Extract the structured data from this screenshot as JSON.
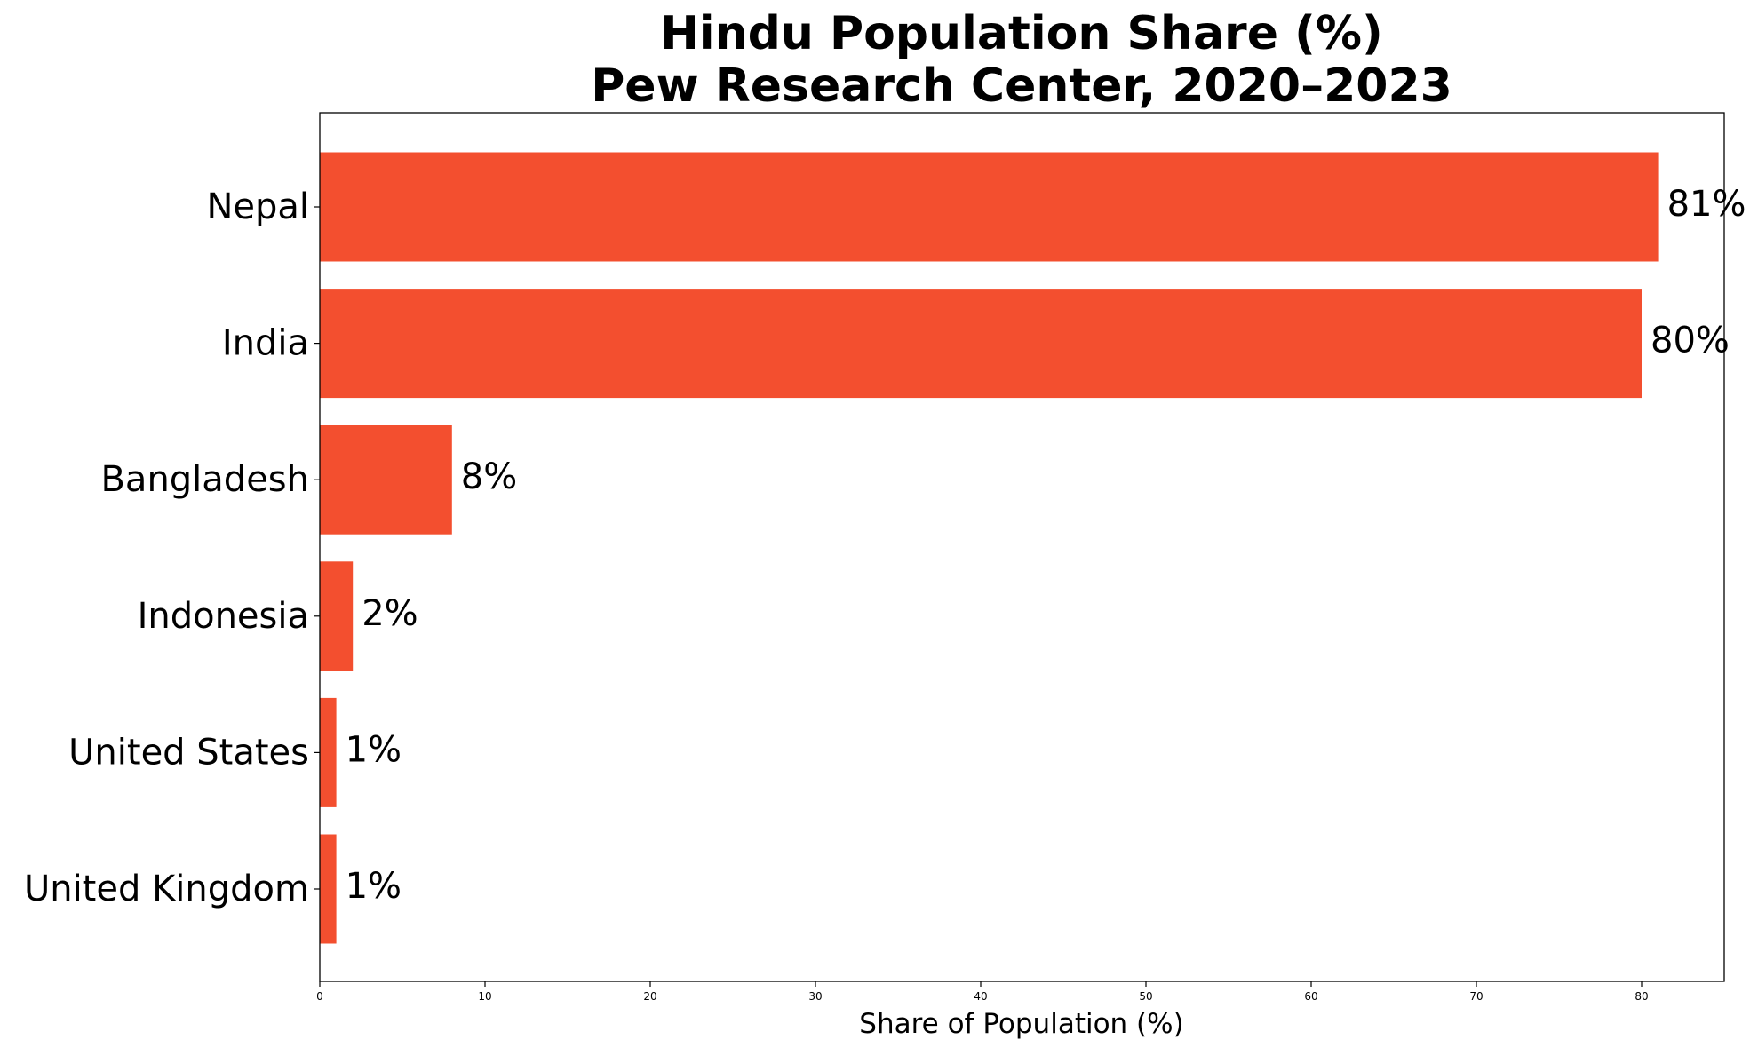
{
  "chart_data": {
    "type": "bar",
    "orientation": "horizontal",
    "title_lines": [
      "Hindu Population Share (%)",
      "Pew Research Center, 2020–2023"
    ],
    "xlabel": "Share of Population (%)",
    "ylabel": "",
    "categories": [
      "Nepal",
      "India",
      "Bangladesh",
      "Indonesia",
      "United States",
      "United Kingdom"
    ],
    "values": [
      81,
      80,
      8,
      2,
      1,
      1
    ],
    "data_labels": [
      "81%",
      "80%",
      "8%",
      "2%",
      "1%",
      "1%"
    ],
    "x_ticks": [
      0,
      10,
      20,
      30,
      40,
      50,
      60,
      70,
      80
    ],
    "xlim": [
      0,
      85
    ],
    "bar_color": "#f34f2f",
    "grid": false,
    "legend": "none"
  }
}
